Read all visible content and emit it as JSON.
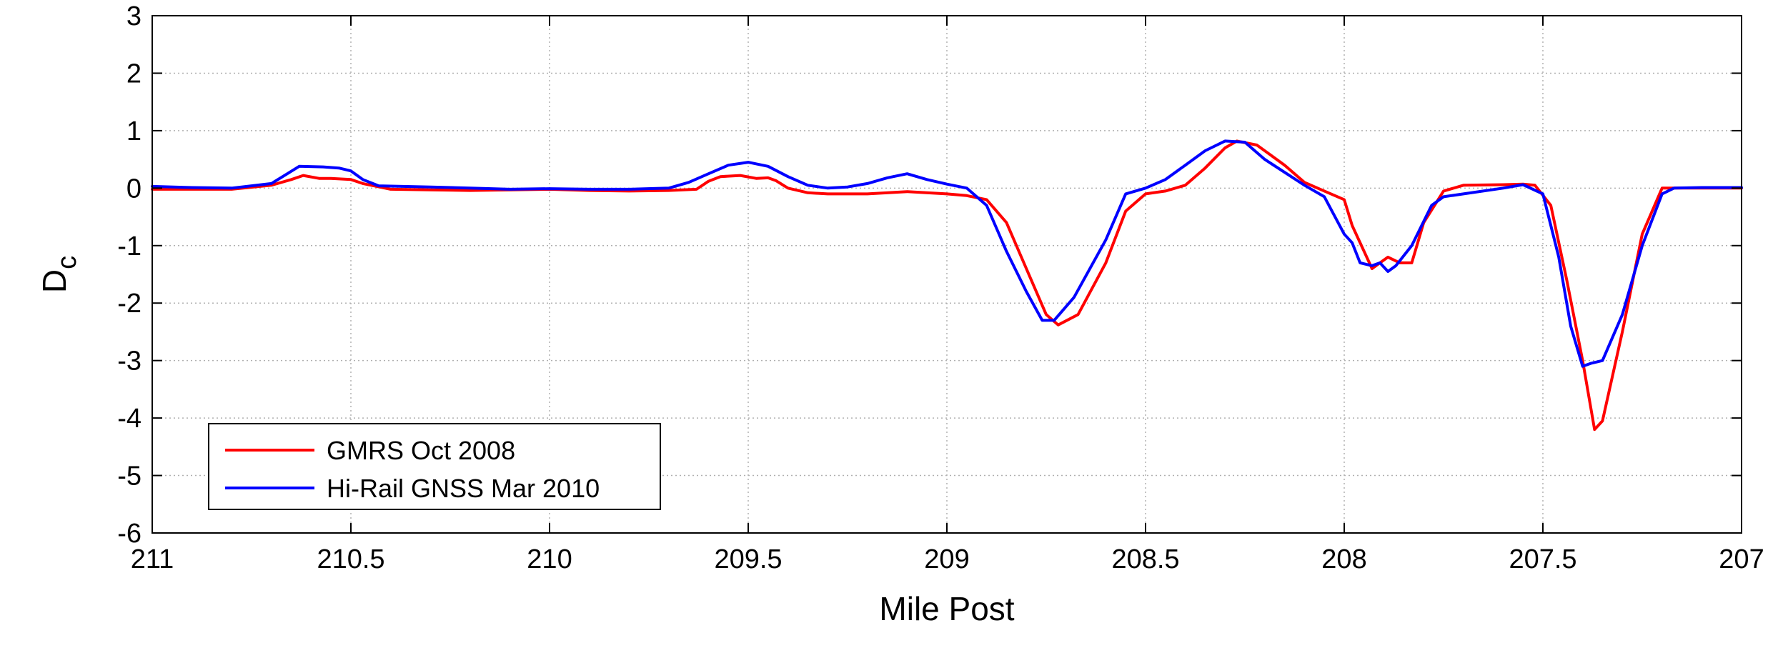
{
  "chart_data": {
    "type": "line",
    "xlabel": "Mile Post",
    "ylabel_main": "D",
    "ylabel_sub": "c",
    "xlim": [
      211,
      207
    ],
    "ylim": [
      -6,
      3
    ],
    "x_reversed": true,
    "grid": true,
    "legend_position": "bottom-left",
    "x_ticks": [
      211,
      210.5,
      210,
      209.5,
      209,
      208.5,
      208,
      207.5,
      207
    ],
    "x_tick_labels": [
      "211",
      "210.5",
      "210",
      "209.5",
      "209",
      "208.5",
      "208",
      "207.5",
      "207"
    ],
    "y_ticks": [
      3,
      2,
      1,
      0,
      -1,
      -2,
      -3,
      -4,
      -5,
      -6
    ],
    "y_tick_labels": [
      "3",
      "2",
      "1",
      "0",
      "-1",
      "-2",
      "-3",
      "-4",
      "-5",
      "-6"
    ],
    "series": [
      {
        "name": "GMRS Oct 2008",
        "color": "#ff0000",
        "points": [
          [
            211.0,
            -0.02
          ],
          [
            210.9,
            -0.02
          ],
          [
            210.8,
            -0.02
          ],
          [
            210.7,
            0.05
          ],
          [
            210.65,
            0.15
          ],
          [
            210.62,
            0.22
          ],
          [
            210.58,
            0.17
          ],
          [
            210.55,
            0.17
          ],
          [
            210.5,
            0.15
          ],
          [
            210.47,
            0.08
          ],
          [
            210.4,
            -0.02
          ],
          [
            210.3,
            -0.03
          ],
          [
            210.2,
            -0.04
          ],
          [
            210.1,
            -0.03
          ],
          [
            210.0,
            -0.02
          ],
          [
            209.9,
            -0.04
          ],
          [
            209.8,
            -0.05
          ],
          [
            209.7,
            -0.04
          ],
          [
            209.63,
            -0.02
          ],
          [
            209.6,
            0.12
          ],
          [
            209.57,
            0.2
          ],
          [
            209.52,
            0.22
          ],
          [
            209.48,
            0.17
          ],
          [
            209.45,
            0.18
          ],
          [
            209.43,
            0.13
          ],
          [
            209.4,
            0.0
          ],
          [
            209.35,
            -0.08
          ],
          [
            209.3,
            -0.1
          ],
          [
            209.2,
            -0.1
          ],
          [
            209.1,
            -0.06
          ],
          [
            209.0,
            -0.1
          ],
          [
            208.95,
            -0.13
          ],
          [
            208.9,
            -0.2
          ],
          [
            208.85,
            -0.6
          ],
          [
            208.8,
            -1.4
          ],
          [
            208.75,
            -2.2
          ],
          [
            208.72,
            -2.38
          ],
          [
            208.67,
            -2.2
          ],
          [
            208.6,
            -1.3
          ],
          [
            208.55,
            -0.4
          ],
          [
            208.5,
            -0.1
          ],
          [
            208.45,
            -0.05
          ],
          [
            208.4,
            0.05
          ],
          [
            208.35,
            0.35
          ],
          [
            208.3,
            0.7
          ],
          [
            208.27,
            0.82
          ],
          [
            208.22,
            0.75
          ],
          [
            208.15,
            0.4
          ],
          [
            208.1,
            0.1
          ],
          [
            208.05,
            -0.05
          ],
          [
            208.0,
            -0.2
          ],
          [
            207.98,
            -0.65
          ],
          [
            207.95,
            -1.1
          ],
          [
            207.93,
            -1.4
          ],
          [
            207.91,
            -1.3
          ],
          [
            207.89,
            -1.2
          ],
          [
            207.86,
            -1.3
          ],
          [
            207.83,
            -1.3
          ],
          [
            207.8,
            -0.6
          ],
          [
            207.75,
            -0.05
          ],
          [
            207.7,
            0.05
          ],
          [
            207.6,
            0.06
          ],
          [
            207.55,
            0.07
          ],
          [
            207.52,
            0.05
          ],
          [
            207.48,
            -0.3
          ],
          [
            207.44,
            -1.6
          ],
          [
            207.4,
            -3.0
          ],
          [
            207.37,
            -4.2
          ],
          [
            207.35,
            -4.05
          ],
          [
            207.3,
            -2.5
          ],
          [
            207.25,
            -0.8
          ],
          [
            207.2,
            0.0
          ],
          [
            207.1,
            0.0
          ],
          [
            207.0,
            0.0
          ]
        ]
      },
      {
        "name": "Hi-Rail GNSS Mar 2010",
        "color": "#0000ff",
        "points": [
          [
            211.0,
            0.03
          ],
          [
            210.9,
            0.01
          ],
          [
            210.8,
            0.0
          ],
          [
            210.7,
            0.08
          ],
          [
            210.66,
            0.25
          ],
          [
            210.63,
            0.38
          ],
          [
            210.57,
            0.37
          ],
          [
            210.53,
            0.35
          ],
          [
            210.5,
            0.3
          ],
          [
            210.47,
            0.15
          ],
          [
            210.43,
            0.04
          ],
          [
            210.3,
            0.02
          ],
          [
            210.2,
            0.0
          ],
          [
            210.1,
            -0.02
          ],
          [
            210.0,
            -0.01
          ],
          [
            209.9,
            -0.02
          ],
          [
            209.8,
            -0.02
          ],
          [
            209.7,
            0.0
          ],
          [
            209.65,
            0.1
          ],
          [
            209.6,
            0.25
          ],
          [
            209.55,
            0.4
          ],
          [
            209.5,
            0.45
          ],
          [
            209.45,
            0.38
          ],
          [
            209.4,
            0.2
          ],
          [
            209.35,
            0.05
          ],
          [
            209.3,
            0.0
          ],
          [
            209.25,
            0.02
          ],
          [
            209.2,
            0.08
          ],
          [
            209.15,
            0.18
          ],
          [
            209.1,
            0.25
          ],
          [
            209.05,
            0.15
          ],
          [
            209.0,
            0.07
          ],
          [
            208.95,
            0.0
          ],
          [
            208.9,
            -0.3
          ],
          [
            208.85,
            -1.1
          ],
          [
            208.8,
            -1.8
          ],
          [
            208.76,
            -2.3
          ],
          [
            208.73,
            -2.3
          ],
          [
            208.68,
            -1.9
          ],
          [
            208.6,
            -0.9
          ],
          [
            208.55,
            -0.1
          ],
          [
            208.5,
            0.0
          ],
          [
            208.45,
            0.15
          ],
          [
            208.4,
            0.4
          ],
          [
            208.35,
            0.65
          ],
          [
            208.3,
            0.82
          ],
          [
            208.25,
            0.8
          ],
          [
            208.2,
            0.5
          ],
          [
            208.1,
            0.05
          ],
          [
            208.05,
            -0.15
          ],
          [
            208.0,
            -0.8
          ],
          [
            207.98,
            -0.95
          ],
          [
            207.96,
            -1.3
          ],
          [
            207.93,
            -1.35
          ],
          [
            207.91,
            -1.3
          ],
          [
            207.89,
            -1.45
          ],
          [
            207.87,
            -1.35
          ],
          [
            207.83,
            -1.0
          ],
          [
            207.78,
            -0.3
          ],
          [
            207.75,
            -0.15
          ],
          [
            207.7,
            -0.1
          ],
          [
            207.6,
            0.0
          ],
          [
            207.55,
            0.06
          ],
          [
            207.5,
            -0.1
          ],
          [
            207.46,
            -1.2
          ],
          [
            207.43,
            -2.4
          ],
          [
            207.4,
            -3.1
          ],
          [
            207.38,
            -3.05
          ],
          [
            207.35,
            -3.0
          ],
          [
            207.3,
            -2.2
          ],
          [
            207.25,
            -1.0
          ],
          [
            207.2,
            -0.1
          ],
          [
            207.17,
            0.0
          ],
          [
            207.1,
            0.01
          ],
          [
            207.0,
            0.01
          ]
        ]
      }
    ]
  }
}
